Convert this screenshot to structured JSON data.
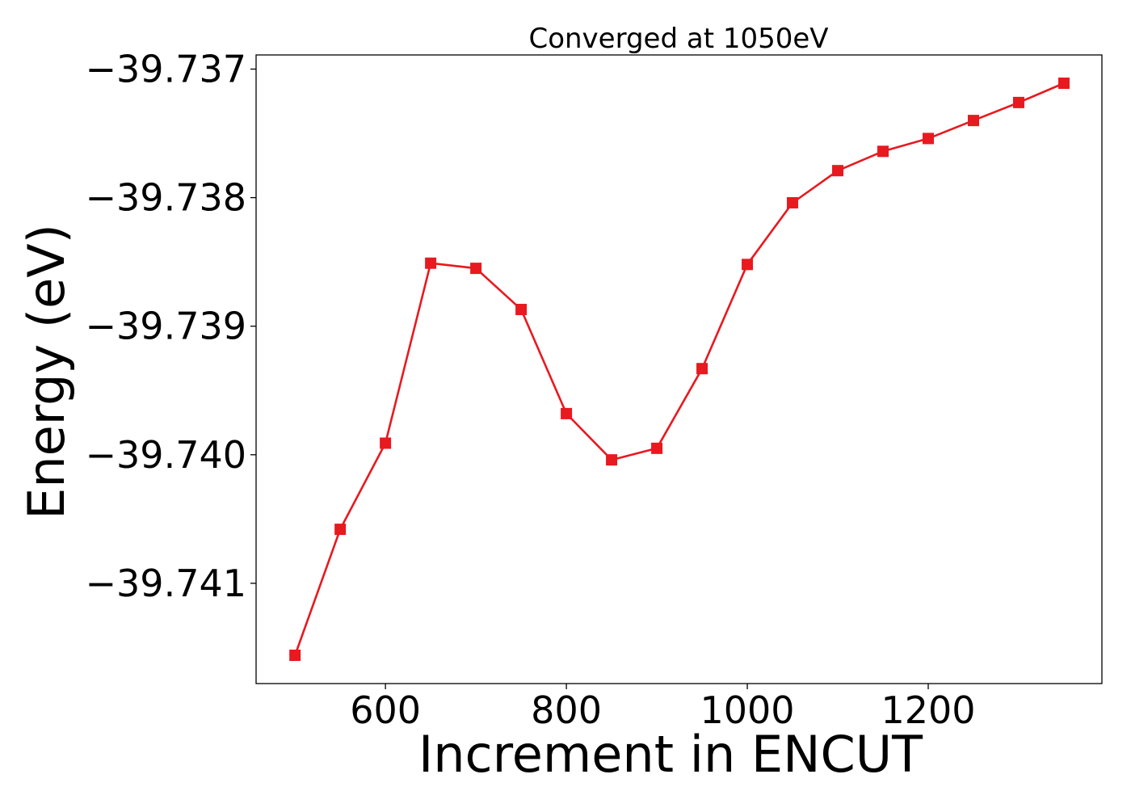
{
  "chart_data": {
    "type": "line",
    "title": "Converged at 1050eV",
    "xlabel": "Increment in ENCUT",
    "ylabel": "Energy (eV)",
    "xlim": [
      457,
      1392
    ],
    "ylim": [
      -39.74178,
      -39.73689
    ],
    "x_ticks": [
      600,
      800,
      1000,
      1200
    ],
    "x_tick_labels": [
      "600",
      "800",
      "1000",
      "1200"
    ],
    "y_ticks": [
      -39.737,
      -39.738,
      -39.739,
      -39.74,
      -39.741
    ],
    "y_tick_labels": [
      "−39.737",
      "−39.738",
      "−39.739",
      "−39.740",
      "−39.741"
    ],
    "grid": false,
    "series": [
      {
        "color": "#e8191f",
        "marker": "square",
        "x": [
          500,
          550,
          600,
          650,
          700,
          750,
          800,
          850,
          900,
          950,
          1000,
          1050,
          1100,
          1150,
          1200,
          1250,
          1300,
          1350
        ],
        "y": [
          -39.74156,
          -39.74058,
          -39.73991,
          -39.73851,
          -39.73855,
          -39.73887,
          -39.73968,
          -39.74004,
          -39.73995,
          -39.73933,
          -39.73852,
          -39.73804,
          -39.73779,
          -39.73764,
          -39.73754,
          -39.7374,
          -39.73726,
          -39.73711
        ]
      }
    ]
  }
}
